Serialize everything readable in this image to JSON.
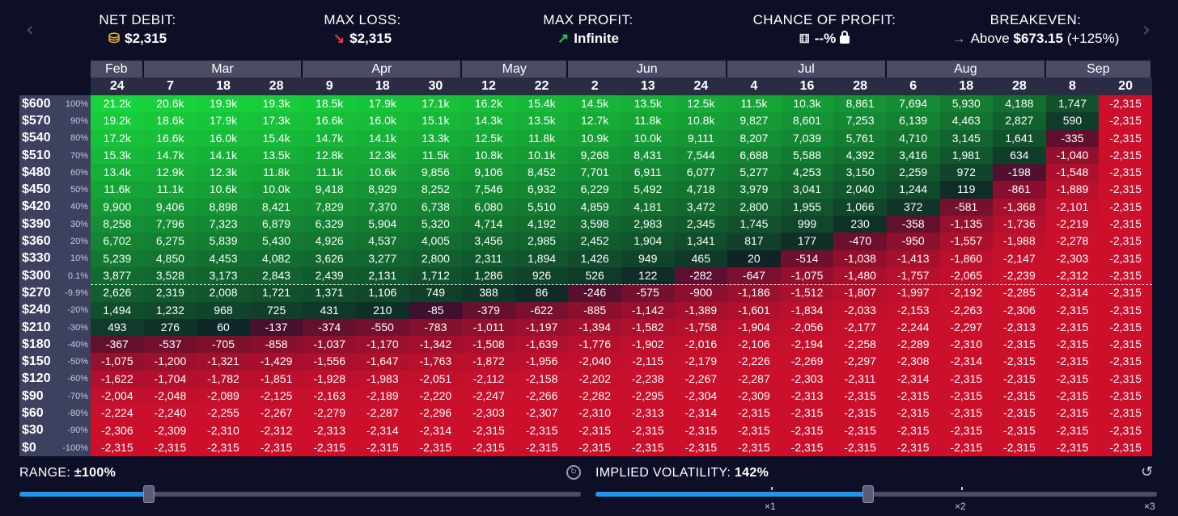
{
  "stats": {
    "net_debit": {
      "label": "NET DEBIT:",
      "icon": "coins-icon",
      "value": "$2,315"
    },
    "max_loss": {
      "label": "MAX LOSS:",
      "icon": "arrow-down-right-icon",
      "value": "$2,315"
    },
    "max_profit": {
      "label": "MAX PROFIT:",
      "icon": "arrow-up-right-icon",
      "value": "Infinite"
    },
    "chance": {
      "label": "CHANCE OF PROFIT:",
      "icon": "dice-icon",
      "value": "--%"
    },
    "breakeven": {
      "label": "BREAKEVEN:",
      "prefix": "Above",
      "value": "$673.15",
      "suffix": "(+125%)"
    }
  },
  "colors": {
    "background": "#0d0f26",
    "profit": "#18d43c",
    "loss": "#e0112d",
    "accent": "#1e96f0"
  },
  "months": [
    {
      "name": "Feb",
      "span": 1
    },
    {
      "name": "Mar",
      "span": 3
    },
    {
      "name": "Apr",
      "span": 3
    },
    {
      "name": "May",
      "span": 2
    },
    {
      "name": "Jun",
      "span": 3
    },
    {
      "name": "Jul",
      "span": 3
    },
    {
      "name": "Aug",
      "span": 3
    },
    {
      "name": "Sep",
      "span": 2
    }
  ],
  "days": [
    "24",
    "7",
    "18",
    "28",
    "9",
    "18",
    "30",
    "12",
    "22",
    "2",
    "13",
    "24",
    "4",
    "16",
    "28",
    "6",
    "18",
    "28",
    "8",
    "20"
  ],
  "rows": [
    {
      "price": "$600",
      "pct": "100%",
      "values": [
        "21.2k",
        "20.6k",
        "19.9k",
        "19.3k",
        "18.5k",
        "17.9k",
        "17.1k",
        "16.2k",
        "15.4k",
        "14.5k",
        "13.5k",
        "12.5k",
        "11.5k",
        "10.3k",
        "8,861",
        "7,694",
        "5,930",
        "4,188",
        "1,747",
        "-2,315"
      ]
    },
    {
      "price": "$570",
      "pct": "90%",
      "values": [
        "19.2k",
        "18.6k",
        "17.9k",
        "17.3k",
        "16.6k",
        "16.0k",
        "15.1k",
        "14.3k",
        "13.5k",
        "12.7k",
        "11.8k",
        "10.8k",
        "9,827",
        "8,601",
        "7,253",
        "6,139",
        "4,463",
        "2,827",
        "590",
        "-2,315"
      ]
    },
    {
      "price": "$540",
      "pct": "80%",
      "values": [
        "17.2k",
        "16.6k",
        "16.0k",
        "15.4k",
        "14.7k",
        "14.1k",
        "13.3k",
        "12.5k",
        "11.8k",
        "10.9k",
        "10.0k",
        "9,111",
        "8,207",
        "7,039",
        "5,761",
        "4,710",
        "3,145",
        "1,641",
        "-335",
        "-2,315"
      ]
    },
    {
      "price": "$510",
      "pct": "70%",
      "values": [
        "15.3k",
        "14.7k",
        "14.1k",
        "13.5k",
        "12.8k",
        "12.3k",
        "11.5k",
        "10.8k",
        "10.1k",
        "9,268",
        "8,431",
        "7,544",
        "6,688",
        "5,588",
        "4,392",
        "3,416",
        "1,981",
        "634",
        "-1,040",
        "-2,315"
      ]
    },
    {
      "price": "$480",
      "pct": "60%",
      "values": [
        "13.4k",
        "12.9k",
        "12.3k",
        "11.8k",
        "11.1k",
        "10.6k",
        "9,856",
        "9,106",
        "8,452",
        "7,701",
        "6,911",
        "6,077",
        "5,277",
        "4,253",
        "3,150",
        "2,259",
        "972",
        "-198",
        "-1,548",
        "-2,315"
      ]
    },
    {
      "price": "$450",
      "pct": "50%",
      "values": [
        "11.6k",
        "11.1k",
        "10.6k",
        "10.0k",
        "9,418",
        "8,929",
        "8,252",
        "7,546",
        "6,932",
        "6,229",
        "5,492",
        "4,718",
        "3,979",
        "3,041",
        "2,040",
        "1,244",
        "119",
        "-861",
        "-1,889",
        "-2,315"
      ]
    },
    {
      "price": "$420",
      "pct": "40%",
      "values": [
        "9,900",
        "9,406",
        "8,898",
        "8,421",
        "7,829",
        "7,370",
        "6,738",
        "6,080",
        "5,510",
        "4,859",
        "4,181",
        "3,472",
        "2,800",
        "1,955",
        "1,066",
        "372",
        "-581",
        "-1,368",
        "-2,101",
        "-2,315"
      ]
    },
    {
      "price": "$390",
      "pct": "30%",
      "values": [
        "8,258",
        "7,796",
        "7,323",
        "6,879",
        "6,329",
        "5,904",
        "5,320",
        "4,714",
        "4,192",
        "3,598",
        "2,983",
        "2,345",
        "1,745",
        "999",
        "230",
        "-358",
        "-1,135",
        "-1,736",
        "-2,219",
        "-2,315"
      ]
    },
    {
      "price": "$360",
      "pct": "20%",
      "values": [
        "6,702",
        "6,275",
        "5,839",
        "5,430",
        "4,926",
        "4,537",
        "4,005",
        "3,456",
        "2,985",
        "2,452",
        "1,904",
        "1,341",
        "817",
        "177",
        "-470",
        "-950",
        "-1,557",
        "-1,988",
        "-2,278",
        "-2,315"
      ]
    },
    {
      "price": "$330",
      "pct": "10%",
      "values": [
        "5,239",
        "4,850",
        "4,453",
        "4,082",
        "3,626",
        "3,277",
        "2,800",
        "2,311",
        "1,894",
        "1,426",
        "949",
        "465",
        "20",
        "-514",
        "-1,038",
        "-1,413",
        "-1,860",
        "-2,147",
        "-2,303",
        "-2,315"
      ]
    },
    {
      "price": "$300",
      "pct": "0.1%",
      "values": [
        "3,877",
        "3,528",
        "3,173",
        "2,843",
        "2,439",
        "2,131",
        "1,712",
        "1,286",
        "926",
        "526",
        "122",
        "-282",
        "-647",
        "-1,075",
        "-1,480",
        "-1,757",
        "-2,065",
        "-2,239",
        "-2,312",
        "-2,315"
      ]
    },
    {
      "price": "$270",
      "pct": "-9.9%",
      "values": [
        "2,626",
        "2,319",
        "2,008",
        "1,721",
        "1,371",
        "1,106",
        "749",
        "388",
        "86",
        "-246",
        "-575",
        "-900",
        "-1,186",
        "-1,512",
        "-1,807",
        "-1,997",
        "-2,192",
        "-2,285",
        "-2,314",
        "-2,315"
      ]
    },
    {
      "price": "$240",
      "pct": "-20%",
      "values": [
        "1,494",
        "1,232",
        "968",
        "725",
        "431",
        "210",
        "-85",
        "-379",
        "-622",
        "-885",
        "-1,142",
        "-1,389",
        "-1,601",
        "-1,834",
        "-2,033",
        "-2,153",
        "-2,263",
        "-2,306",
        "-2,315",
        "-2,315"
      ]
    },
    {
      "price": "$210",
      "pct": "-30%",
      "values": [
        "493",
        "276",
        "60",
        "-137",
        "-374",
        "-550",
        "-783",
        "-1,011",
        "-1,197",
        "-1,394",
        "-1,582",
        "-1,758",
        "-1,904",
        "-2,056",
        "-2,177",
        "-2,244",
        "-2,297",
        "-2,313",
        "-2,315",
        "-2,315"
      ]
    },
    {
      "price": "$180",
      "pct": "-40%",
      "values": [
        "-367",
        "-537",
        "-705",
        "-858",
        "-1,037",
        "-1,170",
        "-1,342",
        "-1,508",
        "-1,639",
        "-1,776",
        "-1,902",
        "-2,016",
        "-2,106",
        "-2,194",
        "-2,258",
        "-2,289",
        "-2,310",
        "-2,315",
        "-2,315",
        "-2,315"
      ]
    },
    {
      "price": "$150",
      "pct": "-50%",
      "values": [
        "-1,075",
        "-1,200",
        "-1,321",
        "-1,429",
        "-1,556",
        "-1,647",
        "-1,763",
        "-1,872",
        "-1,956",
        "-2,040",
        "-2,115",
        "-2,179",
        "-2,226",
        "-2,269",
        "-2,297",
        "-2,308",
        "-2,314",
        "-2,315",
        "-2,315",
        "-2,315"
      ]
    },
    {
      "price": "$120",
      "pct": "-60%",
      "values": [
        "-1,622",
        "-1,704",
        "-1,782",
        "-1,851",
        "-1,928",
        "-1,983",
        "-2,051",
        "-2,112",
        "-2,158",
        "-2,202",
        "-2,238",
        "-2,267",
        "-2,287",
        "-2,303",
        "-2,311",
        "-2,314",
        "-2,315",
        "-2,315",
        "-2,315",
        "-2,315"
      ]
    },
    {
      "price": "$90",
      "pct": "-70%",
      "values": [
        "-2,004",
        "-2,048",
        "-2,089",
        "-2,125",
        "-2,163",
        "-2,189",
        "-2,220",
        "-2,247",
        "-2,266",
        "-2,282",
        "-2,295",
        "-2,304",
        "-2,309",
        "-2,313",
        "-2,315",
        "-2,315",
        "-2,315",
        "-2,315",
        "-2,315",
        "-2,315"
      ]
    },
    {
      "price": "$60",
      "pct": "-80%",
      "values": [
        "-2,224",
        "-2,240",
        "-2,255",
        "-2,267",
        "-2,279",
        "-2,287",
        "-2,296",
        "-2,303",
        "-2,307",
        "-2,310",
        "-2,313",
        "-2,314",
        "-2,315",
        "-2,315",
        "-2,315",
        "-2,315",
        "-2,315",
        "-2,315",
        "-2,315",
        "-2,315"
      ]
    },
    {
      "price": "$30",
      "pct": "-90%",
      "values": [
        "-2,306",
        "-2,309",
        "-2,310",
        "-2,312",
        "-2,313",
        "-2,314",
        "-2,314",
        "-2,315",
        "-2,315",
        "-2,315",
        "-2,315",
        "-2,315",
        "-2,315",
        "-2,315",
        "-2,315",
        "-2,315",
        "-2,315",
        "-2,315",
        "-2,315",
        "-2,315"
      ]
    },
    {
      "price": "$0",
      "pct": "-100%",
      "values": [
        "-2,315",
        "-2,315",
        "-2,315",
        "-2,315",
        "-2,315",
        "-2,315",
        "-2,315",
        "-2,315",
        "-2,315",
        "-2,315",
        "-2,315",
        "-2,315",
        "-2,315",
        "-2,315",
        "-2,315",
        "-2,315",
        "-2,315",
        "-2,315",
        "-2,315",
        "-2,315"
      ]
    }
  ],
  "range": {
    "label": "RANGE:",
    "value": "±100%",
    "fraction": 0.23
  },
  "iv": {
    "label": "IMPLIED VOLATILITY:",
    "value": "142%",
    "fraction": 0.485,
    "ticks": [
      "×1",
      "×2",
      "×3"
    ]
  }
}
